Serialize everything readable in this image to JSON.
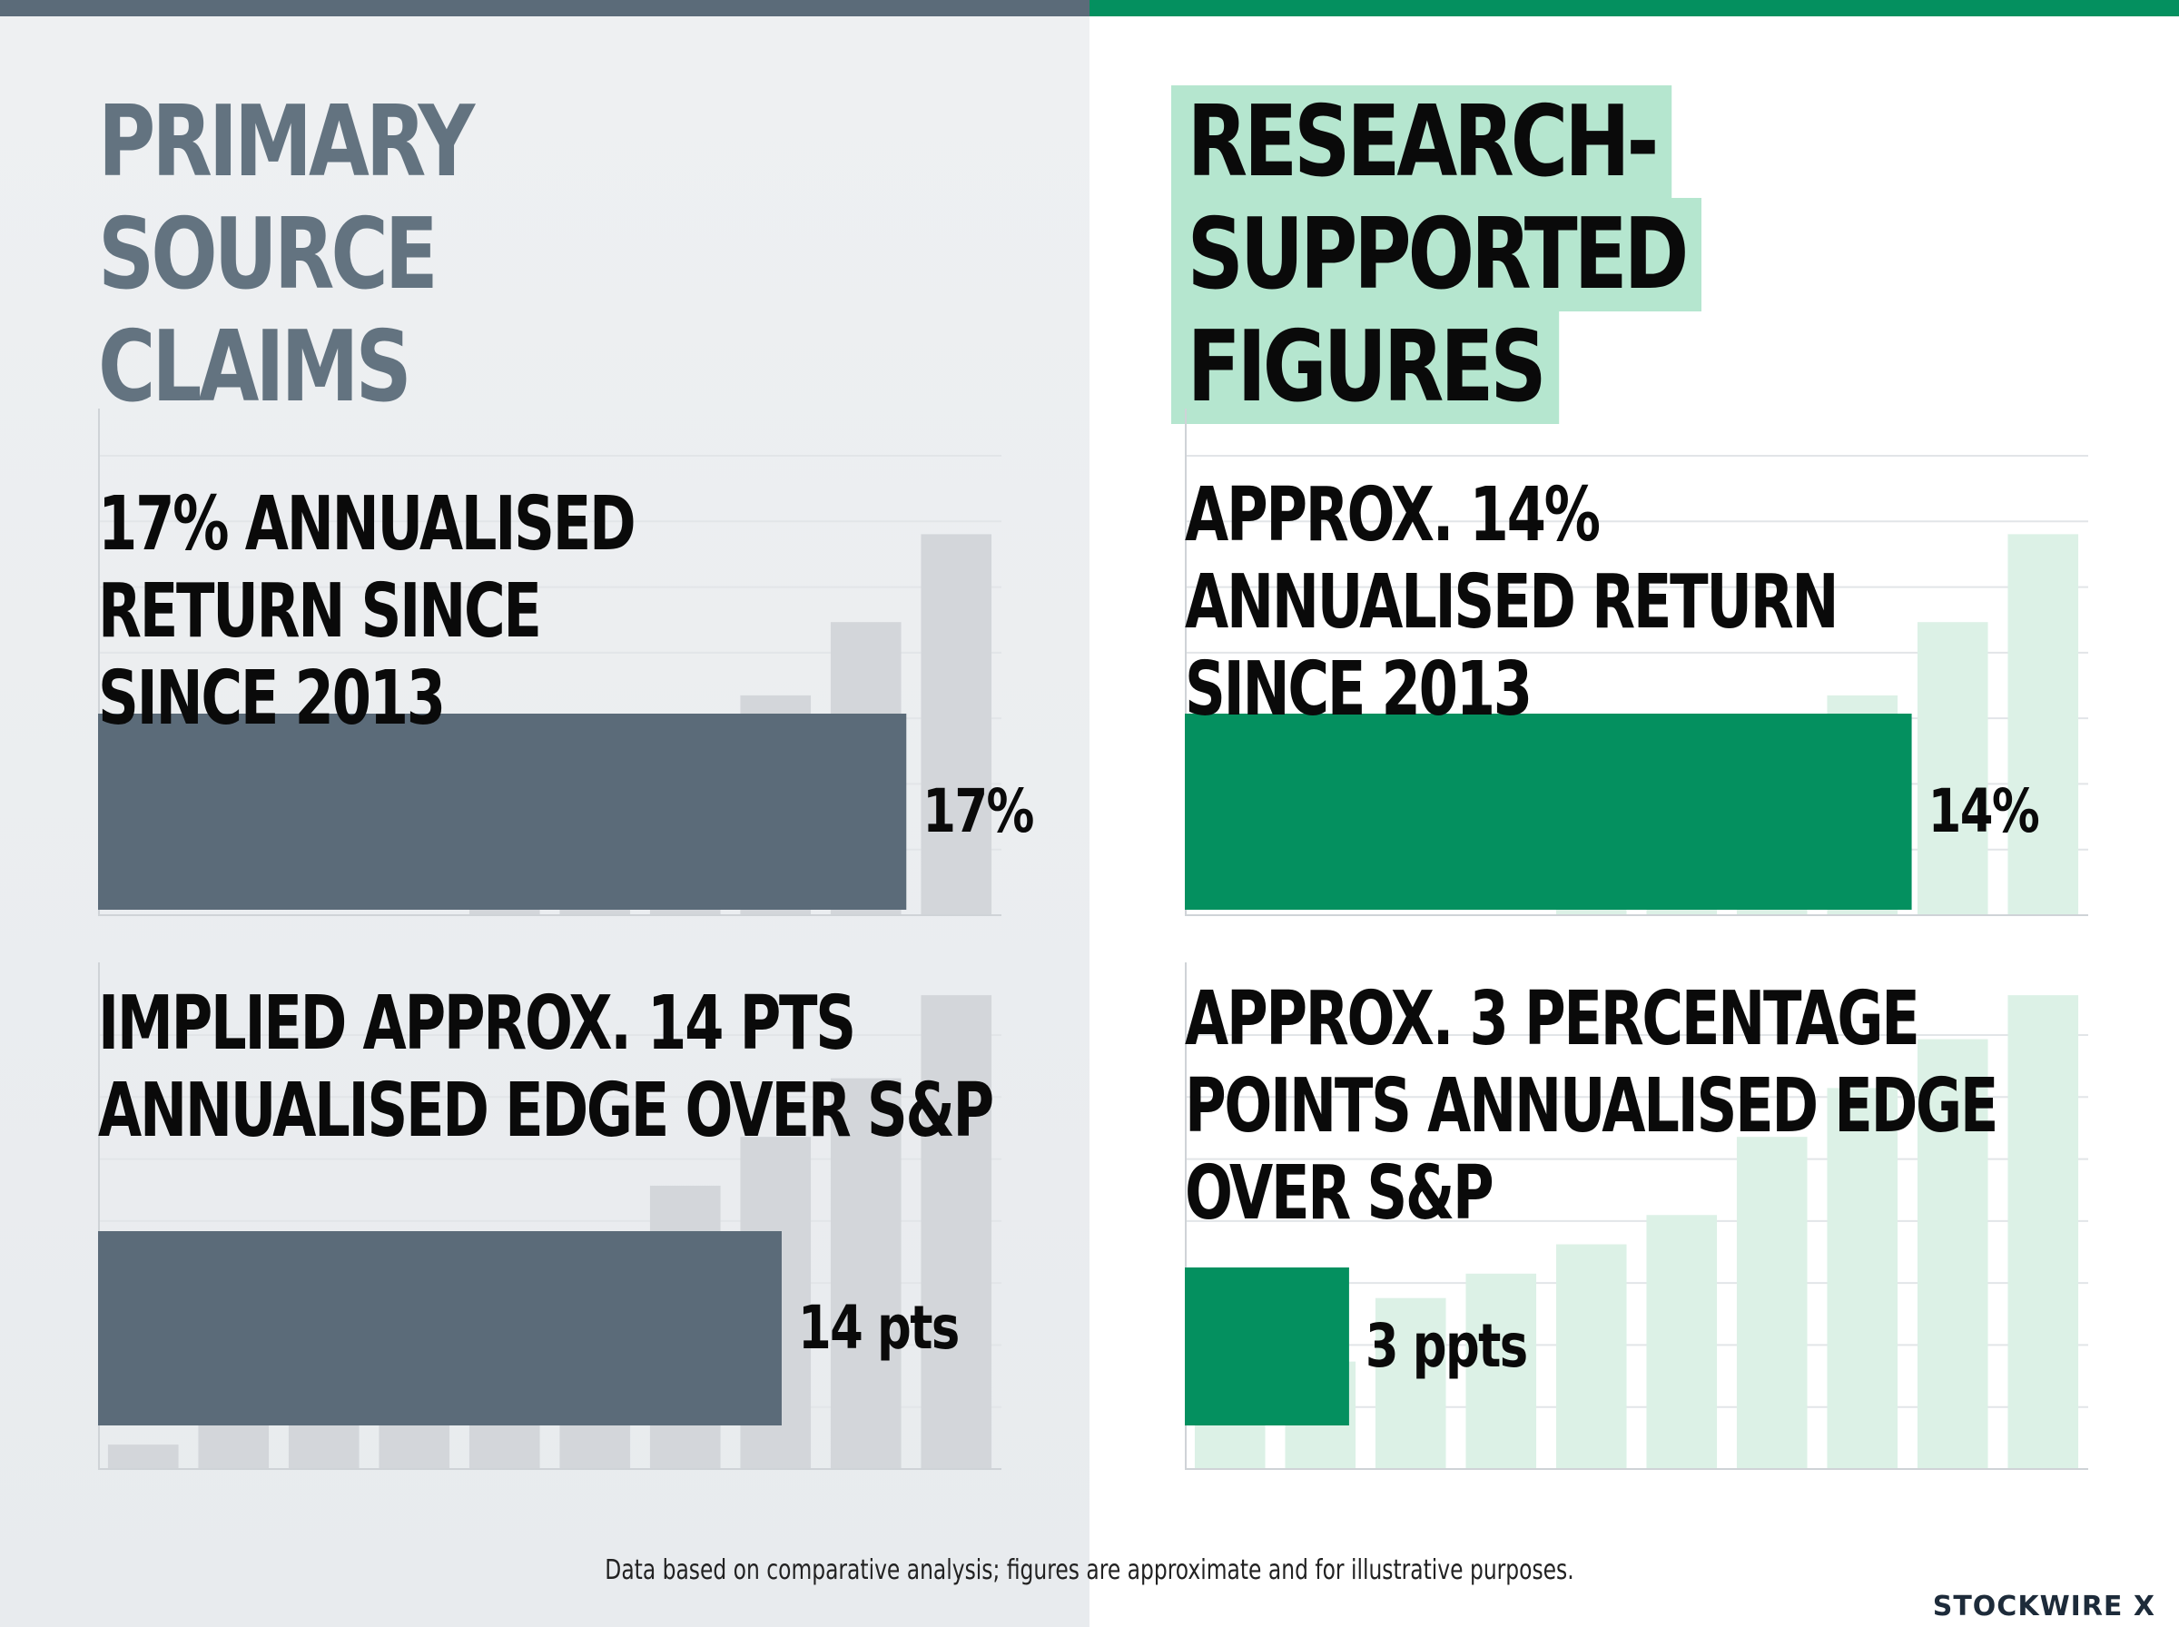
{
  "brand": "STOCKWIRE X",
  "footnote": "Data based on comparative analysis; figures are approximate and for illustrative purposes.",
  "colors": {
    "left_bar": "#5b6b79",
    "right_bar": "#04905f",
    "left_background_bars": "#d3d6da",
    "right_background_bars": "#dcf1e6",
    "right_heading_highlight": "#b5e6cf"
  },
  "left_panel": {
    "heading": "PRIMARY SOURCE\nCLAIMS",
    "return_label": "17% ANNUALISED\nRETURN SINCE\nSINCE 2013",
    "edge_label": "IMPLIED APPROX. 14 PTS\nANNUALISED EDGE OVER S&P"
  },
  "right_panel": {
    "heading": "RESEARCH-SUPPORTED\nFIGURES",
    "return_label": "APPROX. 14%\nANNUALISED RETURN\nSINCE 2013",
    "edge_label": "APPROX. 3 PERCENTAGE\nPOINTS ANNUALISED EDGE\nOVER S&P"
  },
  "chart_data": [
    {
      "type": "bar",
      "orientation": "horizontal",
      "panel": "left",
      "metric": "annualised return since 2013",
      "values": [
        17
      ],
      "value_label": "17%",
      "xlim": [
        0,
        19
      ]
    },
    {
      "type": "bar",
      "orientation": "horizontal",
      "panel": "left",
      "metric": "annualised edge over S&P",
      "values": [
        14
      ],
      "value_label": "14 pts",
      "xlim": [
        0,
        18.5
      ]
    },
    {
      "type": "bar",
      "orientation": "horizontal",
      "panel": "right",
      "metric": "annualised return since 2013",
      "values": [
        14
      ],
      "value_label": "14%",
      "xlim": [
        0,
        17.4
      ]
    },
    {
      "type": "bar",
      "orientation": "horizontal",
      "panel": "right",
      "metric": "annualised edge over S&P",
      "values": [
        3
      ],
      "value_label": "3 ppts",
      "xlim": [
        0,
        16.5
      ]
    }
  ]
}
